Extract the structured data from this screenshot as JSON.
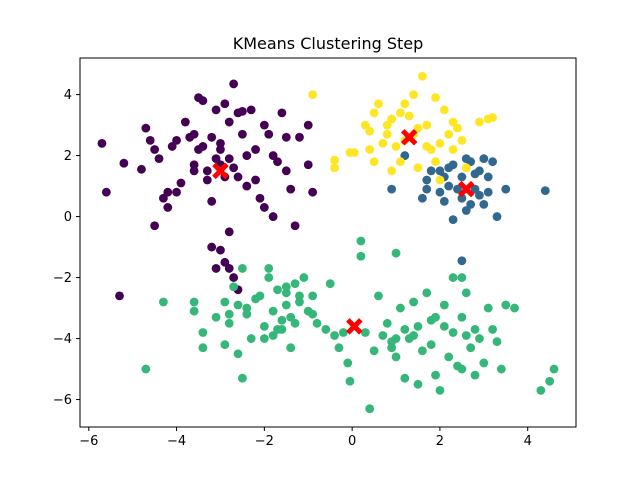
{
  "chart_data": {
    "type": "scatter",
    "title": "KMeans Clustering Step",
    "xlabel": "",
    "ylabel": "",
    "xlim": [
      -6.2,
      5.1
    ],
    "ylim": [
      -6.9,
      5.2
    ],
    "xticks": [
      -6,
      -4,
      -2,
      0,
      2,
      4
    ],
    "yticks": [
      -6,
      -4,
      -2,
      0,
      2,
      4
    ],
    "xtick_labels": [
      "−6",
      "−4",
      "−2",
      "0",
      "2",
      "4"
    ],
    "ytick_labels": [
      "−6",
      "−4",
      "−2",
      "0",
      "2",
      "4"
    ],
    "grid": false,
    "series": [
      {
        "color": "#440154",
        "points": [
          [
            -5.7,
            2.4
          ],
          [
            -5.6,
            0.8
          ],
          [
            -5.2,
            1.75
          ],
          [
            -5.3,
            -2.6
          ],
          [
            -4.8,
            1.55
          ],
          [
            -4.7,
            2.9
          ],
          [
            -4.6,
            2.5
          ],
          [
            -4.5,
            2.2
          ],
          [
            -4.4,
            1.9
          ],
          [
            -4.5,
            -0.3
          ],
          [
            -4.3,
            0.6
          ],
          [
            -4.2,
            0.3
          ],
          [
            -4.2,
            0.8
          ],
          [
            -4.1,
            2.3
          ],
          [
            -4.0,
            2.5
          ],
          [
            -4.0,
            0.8
          ],
          [
            -3.9,
            1.1
          ],
          [
            -3.8,
            3.1
          ],
          [
            -3.7,
            2.6
          ],
          [
            -3.6,
            2.7
          ],
          [
            -3.6,
            1.7
          ],
          [
            -3.5,
            2.2
          ],
          [
            -3.5,
            3.9
          ],
          [
            -3.4,
            3.8
          ],
          [
            -3.4,
            2.3
          ],
          [
            -3.3,
            1.5
          ],
          [
            -3.3,
            1.2
          ],
          [
            -3.2,
            2.6
          ],
          [
            -3.2,
            0.5
          ],
          [
            -3.1,
            1.9
          ],
          [
            -3.0,
            1.7
          ],
          [
            -3.0,
            2.4
          ],
          [
            -3.0,
            2.2
          ],
          [
            -2.9,
            3.7
          ],
          [
            -2.9,
            1.3
          ],
          [
            -2.8,
            3.1
          ],
          [
            -2.8,
            1.9
          ],
          [
            -2.7,
            4.35
          ],
          [
            -2.7,
            1.6
          ],
          [
            -2.6,
            3.4
          ],
          [
            -2.5,
            3.45
          ],
          [
            -2.5,
            2.7
          ],
          [
            -2.4,
            2.0
          ],
          [
            -2.4,
            1.0
          ],
          [
            -2.3,
            3.5
          ],
          [
            -2.2,
            2.2
          ],
          [
            -2.2,
            1.2
          ],
          [
            -2.1,
            0.6
          ],
          [
            -2.0,
            0.3
          ],
          [
            -2.0,
            3.0
          ],
          [
            -1.9,
            2.7
          ],
          [
            -1.8,
            2.0
          ],
          [
            -1.8,
            0.0
          ],
          [
            -1.7,
            1.8
          ],
          [
            -1.6,
            3.4
          ],
          [
            -1.5,
            2.6
          ],
          [
            -1.5,
            1.5
          ],
          [
            -1.4,
            0.9
          ],
          [
            -1.3,
            -0.3
          ],
          [
            -1.2,
            2.6
          ],
          [
            -1.0,
            3.0
          ],
          [
            -1.0,
            1.7
          ],
          [
            -0.9,
            0.8
          ],
          [
            -3.1,
            3.5
          ],
          [
            -2.6,
            1.3
          ],
          [
            -3.6,
            1.5
          ],
          [
            -3.2,
            -1.0
          ],
          [
            -3.0,
            -1.1
          ],
          [
            -2.9,
            -1.5
          ],
          [
            -2.8,
            -1.7
          ],
          [
            -2.7,
            -2.0
          ],
          [
            -2.8,
            -0.5
          ],
          [
            -2.6,
            -2.4
          ],
          [
            -3.1,
            -1.7
          ]
        ]
      },
      {
        "color": "#31688e",
        "points": [
          [
            0.9,
            0.9
          ],
          [
            1.2,
            2.0
          ],
          [
            1.6,
            0.6
          ],
          [
            1.7,
            0.9
          ],
          [
            1.7,
            1.2
          ],
          [
            1.8,
            1.5
          ],
          [
            2.0,
            0.8
          ],
          [
            2.1,
            1.3
          ],
          [
            2.1,
            0.5
          ],
          [
            2.2,
            1.6
          ],
          [
            2.2,
            1.0
          ],
          [
            2.3,
            1.7
          ],
          [
            2.4,
            0.9
          ],
          [
            2.5,
            0.6
          ],
          [
            2.5,
            1.3
          ],
          [
            2.6,
            1.9
          ],
          [
            2.7,
            0.4
          ],
          [
            2.8,
            1.4
          ],
          [
            2.8,
            0.9
          ],
          [
            2.9,
            1.5
          ],
          [
            2.9,
            0.7
          ],
          [
            3.0,
            1.9
          ],
          [
            3.0,
            0.4
          ],
          [
            3.1,
            1.3
          ],
          [
            3.1,
            0.8
          ],
          [
            3.2,
            1.8
          ],
          [
            3.3,
            0.0
          ],
          [
            3.5,
            0.9
          ],
          [
            4.4,
            0.85
          ],
          [
            2.3,
            -0.1
          ],
          [
            2.5,
            -1.45
          ],
          [
            2.6,
            0.2
          ],
          [
            2.7,
            1.8
          ],
          [
            2.0,
            1.5
          ]
        ]
      },
      {
        "color": "#35b779",
        "points": [
          [
            -4.7,
            -5.0
          ],
          [
            -4.3,
            -2.8
          ],
          [
            -3.6,
            -2.8
          ],
          [
            -3.6,
            -3.1
          ],
          [
            -3.4,
            -3.8
          ],
          [
            -3.4,
            -4.3
          ],
          [
            -3.1,
            -3.3
          ],
          [
            -2.9,
            -2.8
          ],
          [
            -2.9,
            -4.2
          ],
          [
            -2.8,
            -3.5
          ],
          [
            -2.8,
            -3.2
          ],
          [
            -2.7,
            -2.3
          ],
          [
            -2.6,
            -2.9
          ],
          [
            -2.6,
            -4.5
          ],
          [
            -2.5,
            -5.3
          ],
          [
            -2.5,
            -1.7
          ],
          [
            -2.4,
            -3.0
          ],
          [
            -2.4,
            -3.2
          ],
          [
            -2.3,
            -4.0
          ],
          [
            -2.2,
            -2.7
          ],
          [
            -2.1,
            -2.6
          ],
          [
            -2.0,
            -3.6
          ],
          [
            -2.0,
            -4.0
          ],
          [
            -1.9,
            -1.7
          ],
          [
            -1.9,
            -2.0
          ],
          [
            -1.8,
            -3.1
          ],
          [
            -1.8,
            -3.9
          ],
          [
            -1.7,
            -3.7
          ],
          [
            -1.7,
            -2.4
          ],
          [
            -1.6,
            -3.4
          ],
          [
            -1.6,
            -3.7
          ],
          [
            -1.5,
            -2.3
          ],
          [
            -1.5,
            -2.5
          ],
          [
            -1.5,
            -2.9
          ],
          [
            -1.4,
            -3.3
          ],
          [
            -1.4,
            -4.3
          ],
          [
            -1.3,
            -2.2
          ],
          [
            -1.3,
            -3.5
          ],
          [
            -1.2,
            -2.6
          ],
          [
            -1.2,
            -2.8
          ],
          [
            -1.1,
            -2.0
          ],
          [
            -1.0,
            -3.1
          ],
          [
            -0.9,
            -3.2
          ],
          [
            -0.9,
            -2.6
          ],
          [
            -0.8,
            -3.5
          ],
          [
            -0.6,
            -3.7
          ],
          [
            -0.5,
            -2.2
          ],
          [
            -0.4,
            -3.9
          ],
          [
            -0.3,
            -4.3
          ],
          [
            -0.2,
            -3.8
          ],
          [
            -0.1,
            -4.8
          ],
          [
            -0.05,
            -5.4
          ],
          [
            0.2,
            -0.8
          ],
          [
            0.3,
            -3.8
          ],
          [
            0.4,
            -6.3
          ],
          [
            0.5,
            -4.4
          ],
          [
            0.6,
            -2.6
          ],
          [
            0.7,
            -3.9
          ],
          [
            0.8,
            -3.5
          ],
          [
            0.9,
            -4.1
          ],
          [
            0.9,
            -4.3
          ],
          [
            1.0,
            -4.0
          ],
          [
            1.0,
            -4.6
          ],
          [
            1.1,
            -3.0
          ],
          [
            1.2,
            -3.7
          ],
          [
            1.2,
            -5.3
          ],
          [
            1.3,
            -4.0
          ],
          [
            1.4,
            -2.8
          ],
          [
            1.4,
            -3.9
          ],
          [
            1.5,
            -3.6
          ],
          [
            1.5,
            -5.5
          ],
          [
            1.6,
            -4.4
          ],
          [
            1.7,
            -2.5
          ],
          [
            1.8,
            -3.4
          ],
          [
            1.8,
            -4.2
          ],
          [
            1.9,
            -5.2
          ],
          [
            1.9,
            -3.3
          ],
          [
            2.0,
            -5.7
          ],
          [
            2.1,
            -2.9
          ],
          [
            2.1,
            -3.6
          ],
          [
            2.2,
            -4.6
          ],
          [
            2.3,
            -2.0
          ],
          [
            2.3,
            -3.8
          ],
          [
            2.4,
            -4.9
          ],
          [
            2.5,
            -3.3
          ],
          [
            2.5,
            -5.0
          ],
          [
            2.6,
            -2.5
          ],
          [
            2.6,
            -3.9
          ],
          [
            2.7,
            -4.3
          ],
          [
            2.8,
            -5.2
          ],
          [
            2.8,
            -3.7
          ],
          [
            2.9,
            -4.0
          ],
          [
            3.0,
            -4.8
          ],
          [
            3.1,
            -3.0
          ],
          [
            3.2,
            -3.7
          ],
          [
            3.3,
            -4.1
          ],
          [
            3.4,
            -5.0
          ],
          [
            3.5,
            -2.9
          ],
          [
            3.7,
            -3.0
          ],
          [
            4.3,
            -5.7
          ],
          [
            4.5,
            -5.4
          ],
          [
            4.6,
            -5.0
          ],
          [
            1.0,
            -1.2
          ],
          [
            2.5,
            -2.0
          ],
          [
            0.2,
            -1.3
          ]
        ]
      },
      {
        "color": "#fde725",
        "points": [
          [
            -0.9,
            4.0
          ],
          [
            -0.4,
            1.6
          ],
          [
            -0.4,
            1.85
          ],
          [
            -0.05,
            2.1
          ],
          [
            0.05,
            2.1
          ],
          [
            0.3,
            3.0
          ],
          [
            0.4,
            2.8
          ],
          [
            0.4,
            2.2
          ],
          [
            0.5,
            3.4
          ],
          [
            0.5,
            1.8
          ],
          [
            0.6,
            3.7
          ],
          [
            0.7,
            2.4
          ],
          [
            0.8,
            3.0
          ],
          [
            0.8,
            2.7
          ],
          [
            0.9,
            3.2
          ],
          [
            0.9,
            1.5
          ],
          [
            1.0,
            2.3
          ],
          [
            1.1,
            1.8
          ],
          [
            1.1,
            3.4
          ],
          [
            1.2,
            2.5
          ],
          [
            1.3,
            3.3
          ],
          [
            1.4,
            2.7
          ],
          [
            1.4,
            4.0
          ],
          [
            1.5,
            2.9
          ],
          [
            1.5,
            1.6
          ],
          [
            1.6,
            4.6
          ],
          [
            1.7,
            2.3
          ],
          [
            1.7,
            3.0
          ],
          [
            1.8,
            2.2
          ],
          [
            1.9,
            1.8
          ],
          [
            1.9,
            3.9
          ],
          [
            2.0,
            2.4
          ],
          [
            2.0,
            1.2
          ],
          [
            2.1,
            3.5
          ],
          [
            2.2,
            2.7
          ],
          [
            2.3,
            3.1
          ],
          [
            2.3,
            2.2
          ],
          [
            2.4,
            2.9
          ],
          [
            2.5,
            2.5
          ],
          [
            2.6,
            1.6
          ],
          [
            2.9,
            3.1
          ],
          [
            3.1,
            3.2
          ],
          [
            3.2,
            3.25
          ],
          [
            1.2,
            3.7
          ]
        ]
      }
    ],
    "centroids": {
      "color": "#ff0000",
      "marker": "X",
      "points": [
        [
          -3.0,
          1.5
        ],
        [
          1.3,
          2.6
        ],
        [
          2.6,
          0.9
        ],
        [
          0.05,
          -3.6
        ]
      ]
    }
  }
}
